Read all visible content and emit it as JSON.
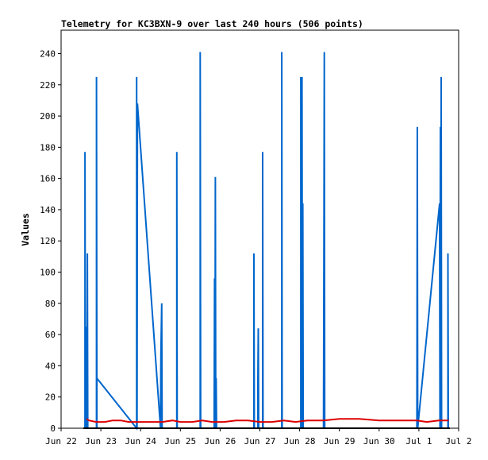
{
  "chart_data": {
    "type": "line",
    "title": "Telemetry for KC3BXN-9 over last 240 hours (506 points)",
    "ylabel": "Values",
    "xlabel": "",
    "x_ticks": [
      "Jun 22",
      "Jun 23",
      "Jun 24",
      "Jun 25",
      "Jun 26",
      "Jun 27",
      "Jun 28",
      "Jun 29",
      "Jun 30",
      "Jul 1",
      "Jul 2"
    ],
    "y_ticks": [
      0,
      20,
      40,
      60,
      80,
      100,
      120,
      140,
      160,
      180,
      200,
      220,
      240
    ],
    "x_unit": "days after Jun 22 00:00",
    "xlim": [
      0,
      10
    ],
    "ylim": [
      0,
      255
    ],
    "grid": false,
    "legend": "none",
    "series": [
      {
        "color": "#0066cc",
        "points": [
          [
            0.6,
            0
          ],
          [
            0.6,
            177
          ],
          [
            0.61,
            0
          ],
          [
            0.64,
            65
          ],
          [
            0.65,
            0
          ],
          [
            0.66,
            112
          ],
          [
            0.67,
            0
          ],
          [
            0.89,
            0
          ],
          [
            0.89,
            225
          ],
          [
            0.9,
            16
          ],
          [
            0.9,
            0
          ],
          [
            0.9,
            32
          ],
          [
            1.9,
            0
          ],
          [
            1.9,
            225
          ],
          [
            1.91,
            0
          ],
          [
            1.92,
            208
          ],
          [
            2.5,
            0
          ],
          [
            2.51,
            48
          ],
          [
            2.53,
            80
          ],
          [
            2.54,
            0
          ],
          [
            2.91,
            0
          ],
          [
            2.91,
            177
          ],
          [
            2.92,
            0
          ],
          [
            3.5,
            0
          ],
          [
            3.5,
            241
          ],
          [
            3.51,
            0
          ],
          [
            3.85,
            0
          ],
          [
            3.86,
            96
          ],
          [
            3.87,
            0
          ],
          [
            3.88,
            161
          ],
          [
            3.89,
            0
          ],
          [
            3.9,
            32
          ],
          [
            3.91,
            0
          ],
          [
            4.85,
            0
          ],
          [
            4.85,
            112
          ],
          [
            4.86,
            0
          ],
          [
            4.95,
            0
          ],
          [
            4.95,
            32
          ],
          [
            4.96,
            64
          ],
          [
            4.97,
            0
          ],
          [
            5.07,
            0
          ],
          [
            5.07,
            177
          ],
          [
            5.08,
            0
          ],
          [
            5.55,
            0
          ],
          [
            5.55,
            241
          ],
          [
            5.56,
            0
          ],
          [
            6.03,
            0
          ],
          [
            6.03,
            225
          ],
          [
            6.04,
            0
          ],
          [
            6.06,
            225
          ],
          [
            6.07,
            0
          ],
          [
            6.08,
            144
          ],
          [
            6.09,
            0
          ],
          [
            6.6,
            0
          ],
          [
            6.61,
            112
          ],
          [
            6.62,
            241
          ],
          [
            6.63,
            0
          ],
          [
            8.95,
            0
          ],
          [
            8.96,
            193
          ],
          [
            8.97,
            0
          ],
          [
            9.52,
            144
          ],
          [
            9.53,
            0
          ],
          [
            9.54,
            193
          ],
          [
            9.55,
            72
          ],
          [
            9.56,
            225
          ],
          [
            9.57,
            0
          ],
          [
            9.73,
            0
          ],
          [
            9.73,
            112
          ],
          [
            9.74,
            0
          ]
        ]
      },
      {
        "color": "#dd0000",
        "points": [
          [
            0.64,
            6
          ],
          [
            0.7,
            5
          ],
          [
            0.88,
            4
          ],
          [
            1.1,
            4
          ],
          [
            1.3,
            5
          ],
          [
            1.5,
            5
          ],
          [
            1.7,
            4
          ],
          [
            2.0,
            4
          ],
          [
            2.3,
            4
          ],
          [
            2.55,
            4
          ],
          [
            2.8,
            5
          ],
          [
            3.0,
            4
          ],
          [
            3.3,
            4
          ],
          [
            3.55,
            5
          ],
          [
            3.8,
            4
          ],
          [
            4.1,
            4
          ],
          [
            4.4,
            5
          ],
          [
            4.7,
            5
          ],
          [
            5.0,
            4
          ],
          [
            5.3,
            4
          ],
          [
            5.6,
            5
          ],
          [
            5.9,
            4
          ],
          [
            6.2,
            5
          ],
          [
            6.6,
            5
          ],
          [
            7.0,
            6
          ],
          [
            7.5,
            6
          ],
          [
            8.0,
            5
          ],
          [
            8.5,
            5
          ],
          [
            8.95,
            5
          ],
          [
            9.2,
            4
          ],
          [
            9.5,
            5
          ],
          [
            9.75,
            5
          ]
        ]
      },
      {
        "color": "#000000",
        "points": [
          [
            0.56,
            0
          ],
          [
            9.78,
            0
          ]
        ]
      }
    ]
  }
}
